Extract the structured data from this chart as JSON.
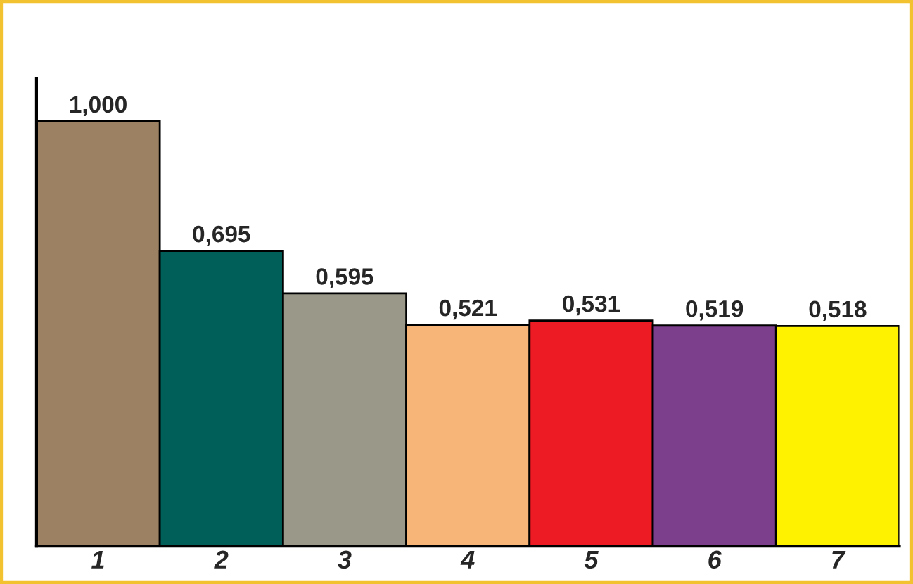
{
  "chart_data": {
    "type": "bar",
    "categories": [
      "1",
      "2",
      "3",
      "4",
      "5",
      "6",
      "7"
    ],
    "values": [
      1.0,
      0.695,
      0.595,
      0.521,
      0.531,
      0.519,
      0.518
    ],
    "value_labels": [
      "1,000",
      "0,695",
      "0,595",
      "0,521",
      "0,531",
      "0,519",
      "0,518"
    ],
    "colors": [
      "#9c8262",
      "#005f58",
      "#9a9889",
      "#f7b577",
      "#ed1c24",
      "#7b3f8c",
      "#fef200"
    ],
    "grid": false,
    "legend": false
  }
}
